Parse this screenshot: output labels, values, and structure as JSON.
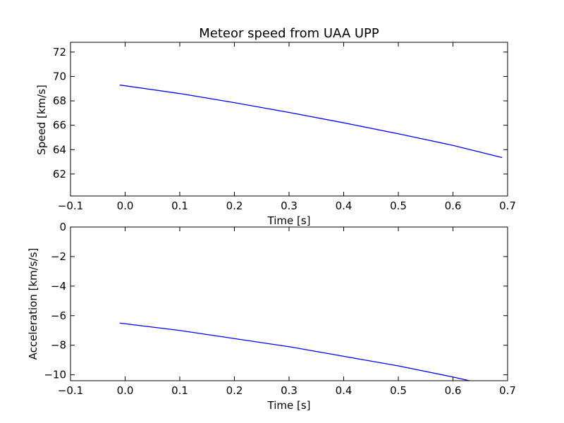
{
  "chart_data": [
    {
      "type": "line",
      "title": "Meteor speed from  UAA UPP",
      "xlabel": "Time [s]",
      "ylabel": "Speed [km/s]",
      "xlim": [
        -0.1,
        0.7
      ],
      "ylim": [
        60.2,
        72.8
      ],
      "xticks": [
        -0.1,
        0.0,
        0.1,
        0.2,
        0.3,
        0.4,
        0.5,
        0.6,
        0.7
      ],
      "xtick_labels": [
        "−0.1",
        "0.0",
        "0.1",
        "0.2",
        "0.3",
        "0.4",
        "0.5",
        "0.6",
        "0.7"
      ],
      "yticks": [
        62,
        64,
        66,
        68,
        70,
        72
      ],
      "ytick_labels": [
        "62",
        "64",
        "66",
        "68",
        "70",
        "72"
      ],
      "grid": false,
      "line_color": "#0000ff",
      "series": [
        {
          "x": [
            -0.01,
            0.1,
            0.2,
            0.3,
            0.4,
            0.5,
            0.6,
            0.69
          ],
          "y": [
            69.3,
            68.6,
            67.85,
            67.05,
            66.2,
            65.3,
            64.35,
            63.35
          ]
        }
      ]
    },
    {
      "type": "line",
      "title": "",
      "xlabel": "Time [s]",
      "ylabel": "Acceleration [km/s/s]",
      "xlim": [
        -0.1,
        0.7
      ],
      "ylim": [
        -10.4,
        0
      ],
      "xticks": [
        -0.1,
        0.0,
        0.1,
        0.2,
        0.3,
        0.4,
        0.5,
        0.6,
        0.7
      ],
      "xtick_labels": [
        "−0.1",
        "0.0",
        "0.1",
        "0.2",
        "0.3",
        "0.4",
        "0.5",
        "0.6",
        "0.7"
      ],
      "yticks": [
        0,
        -2,
        -4,
        -6,
        -8,
        -10
      ],
      "ytick_labels": [
        "0",
        "−2",
        "−4",
        "−6",
        "−8",
        "−10"
      ],
      "grid": false,
      "line_color": "#0000ff",
      "series": [
        {
          "x": [
            -0.01,
            0.1,
            0.2,
            0.3,
            0.4,
            0.5,
            0.6,
            0.63
          ],
          "y": [
            -6.5,
            -7.0,
            -7.55,
            -8.1,
            -8.75,
            -9.4,
            -10.15,
            -10.4
          ]
        }
      ]
    }
  ]
}
